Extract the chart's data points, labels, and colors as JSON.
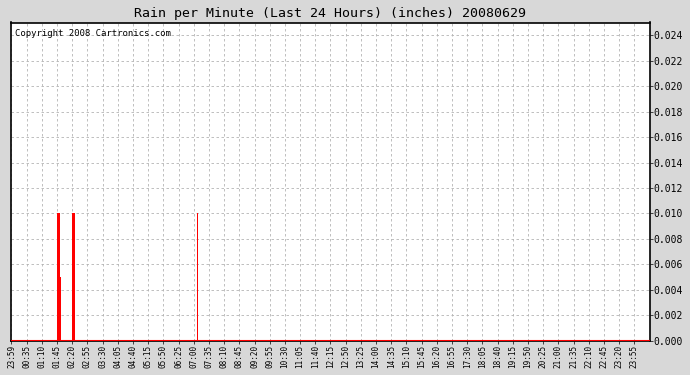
{
  "title": "Rain per Minute (Last 24 Hours) (inches) 20080629",
  "copyright": "Copyright 2008 Cartronics.com",
  "background_color": "#ffffff",
  "plot_bg_color": "#ffffff",
  "outer_bg_color": "#d8d8d8",
  "bar_color": "#ff0000",
  "baseline_color": "#ff0000",
  "grid_color": "#b4b4b4",
  "ylim": [
    0.0,
    0.025
  ],
  "yticks": [
    0.0,
    0.002,
    0.004,
    0.006,
    0.008,
    0.01,
    0.012,
    0.014,
    0.016,
    0.018,
    0.02,
    0.022,
    0.024
  ],
  "time_labels": [
    "23:59",
    "00:35",
    "01:10",
    "01:45",
    "02:20",
    "02:55",
    "03:30",
    "04:05",
    "04:40",
    "05:15",
    "05:50",
    "06:25",
    "07:00",
    "07:35",
    "08:10",
    "08:45",
    "09:20",
    "09:55",
    "10:30",
    "11:05",
    "11:40",
    "12:15",
    "12:50",
    "13:25",
    "14:00",
    "14:35",
    "15:10",
    "15:45",
    "16:20",
    "16:55",
    "17:30",
    "18:05",
    "18:40",
    "19:15",
    "19:50",
    "20:25",
    "21:00",
    "21:35",
    "22:10",
    "22:45",
    "23:20",
    "23:55"
  ],
  "num_points": 1440,
  "rain_events": [
    {
      "minute": 105,
      "value": 0.01
    },
    {
      "minute": 108,
      "value": 0.01
    },
    {
      "minute": 110,
      "value": 0.005
    },
    {
      "minute": 138,
      "value": 0.01
    },
    {
      "minute": 140,
      "value": 0.01
    },
    {
      "minute": 141,
      "value": 0.01
    },
    {
      "minute": 420,
      "value": 0.01
    }
  ]
}
